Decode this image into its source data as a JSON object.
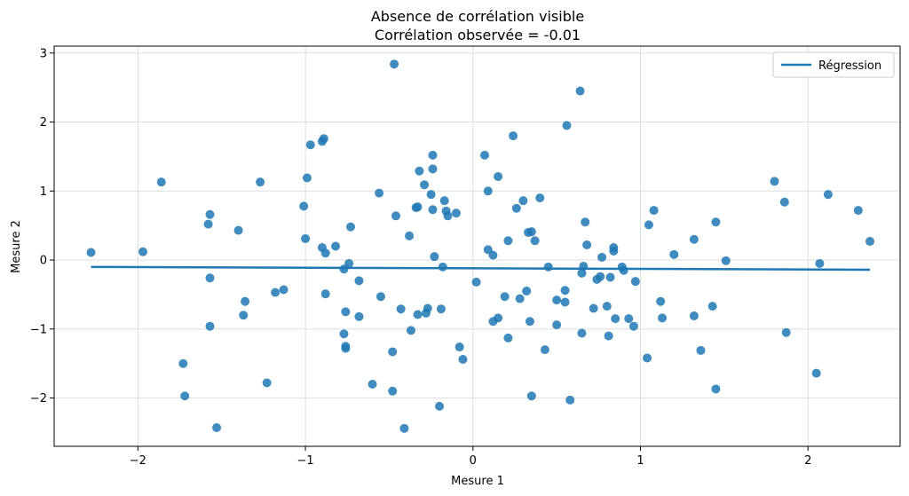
{
  "chart_data": {
    "type": "scatter",
    "title_line1": "Absence de corrélation visible",
    "title_line2": "Corrélation observée = -0.01",
    "xlabel": "Mesure 1",
    "ylabel": "Mesure 2",
    "xlim": [
      -2.5,
      2.55
    ],
    "ylim": [
      -2.7,
      3.1
    ],
    "xticks": [
      -2,
      -1,
      0,
      1,
      2
    ],
    "xtick_labels": [
      "−2",
      "−1",
      "0",
      "1",
      "2"
    ],
    "yticks": [
      -2,
      -1,
      0,
      1,
      2,
      3
    ],
    "ytick_labels": [
      "−2",
      "−1",
      "0",
      "1",
      "2",
      "3"
    ],
    "grid": true,
    "legend": {
      "position": "top-right",
      "entries": [
        "Régression"
      ]
    },
    "colors": {
      "points": "#1f77b4",
      "line": "#1f77b4"
    },
    "regression": {
      "x": [
        -2.28,
        2.37
      ],
      "y": [
        -0.1,
        -0.14
      ]
    },
    "points": [
      [
        -2.28,
        0.11
      ],
      [
        -1.97,
        0.12
      ],
      [
        -1.86,
        1.13
      ],
      [
        -1.73,
        -1.5
      ],
      [
        -1.72,
        -1.97
      ],
      [
        -1.58,
        0.52
      ],
      [
        -1.57,
        0.66
      ],
      [
        -1.57,
        -0.26
      ],
      [
        -1.57,
        -0.96
      ],
      [
        -1.53,
        -2.43
      ],
      [
        -1.4,
        0.43
      ],
      [
        -1.37,
        -0.8
      ],
      [
        -1.36,
        -0.6
      ],
      [
        -1.27,
        1.13
      ],
      [
        -1.23,
        -1.78
      ],
      [
        -1.18,
        -0.47
      ],
      [
        -1.13,
        -0.43
      ],
      [
        -1.01,
        0.78
      ],
      [
        -1.0,
        0.31
      ],
      [
        -0.99,
        1.19
      ],
      [
        -0.97,
        1.67
      ],
      [
        -0.9,
        1.72
      ],
      [
        -0.89,
        1.76
      ],
      [
        -0.9,
        0.18
      ],
      [
        -0.88,
        0.1
      ],
      [
        -0.88,
        -0.49
      ],
      [
        -0.82,
        0.2
      ],
      [
        -0.77,
        -0.13
      ],
      [
        -0.76,
        -0.75
      ],
      [
        -0.77,
        -1.07
      ],
      [
        -0.76,
        -1.25
      ],
      [
        -0.76,
        -1.28
      ],
      [
        -0.74,
        -0.05
      ],
      [
        -0.73,
        0.48
      ],
      [
        -0.68,
        -0.3
      ],
      [
        -0.68,
        -0.82
      ],
      [
        -0.6,
        -1.8
      ],
      [
        -0.56,
        0.97
      ],
      [
        -0.55,
        -0.53
      ],
      [
        -0.48,
        -1.33
      ],
      [
        -0.48,
        -1.9
      ],
      [
        -0.47,
        2.84
      ],
      [
        -0.46,
        0.64
      ],
      [
        -0.43,
        -0.71
      ],
      [
        -0.41,
        -2.44
      ],
      [
        -0.38,
        0.35
      ],
      [
        -0.37,
        -1.02
      ],
      [
        -0.34,
        0.76
      ],
      [
        -0.33,
        0.77
      ],
      [
        -0.32,
        1.29
      ],
      [
        -0.33,
        -0.79
      ],
      [
        -0.29,
        1.09
      ],
      [
        -0.28,
        -0.77
      ],
      [
        -0.27,
        -0.7
      ],
      [
        -0.25,
        0.95
      ],
      [
        -0.24,
        1.52
      ],
      [
        -0.24,
        1.32
      ],
      [
        -0.24,
        0.73
      ],
      [
        -0.23,
        0.05
      ],
      [
        -0.2,
        -2.12
      ],
      [
        -0.19,
        -0.71
      ],
      [
        -0.18,
        -0.1
      ],
      [
        -0.17,
        0.86
      ],
      [
        -0.16,
        0.71
      ],
      [
        -0.15,
        0.64
      ],
      [
        -0.1,
        0.68
      ],
      [
        -0.08,
        -1.26
      ],
      [
        -0.06,
        -1.44
      ],
      [
        0.02,
        -0.32
      ],
      [
        0.07,
        1.52
      ],
      [
        0.09,
        1.0
      ],
      [
        0.09,
        0.15
      ],
      [
        0.12,
        0.07
      ],
      [
        0.12,
        -0.89
      ],
      [
        0.15,
        1.21
      ],
      [
        0.15,
        -0.84
      ],
      [
        0.19,
        -0.53
      ],
      [
        0.21,
        0.28
      ],
      [
        0.21,
        -1.13
      ],
      [
        0.24,
        1.8
      ],
      [
        0.26,
        0.75
      ],
      [
        0.28,
        -0.56
      ],
      [
        0.3,
        0.86
      ],
      [
        0.32,
        -0.45
      ],
      [
        0.33,
        0.4
      ],
      [
        0.34,
        -0.89
      ],
      [
        0.35,
        0.41
      ],
      [
        0.35,
        -1.97
      ],
      [
        0.37,
        0.28
      ],
      [
        0.4,
        0.9
      ],
      [
        0.43,
        -1.3
      ],
      [
        0.45,
        -0.1
      ],
      [
        0.5,
        -0.58
      ],
      [
        0.5,
        -0.94
      ],
      [
        0.55,
        -0.61
      ],
      [
        0.55,
        -0.44
      ],
      [
        0.56,
        1.95
      ],
      [
        0.58,
        -2.03
      ],
      [
        0.64,
        2.45
      ],
      [
        0.65,
        -0.19
      ],
      [
        0.65,
        -1.06
      ],
      [
        0.66,
        -0.09
      ],
      [
        0.67,
        0.55
      ],
      [
        0.68,
        0.22
      ],
      [
        0.72,
        -0.7
      ],
      [
        0.74,
        -0.28
      ],
      [
        0.76,
        -0.24
      ],
      [
        0.77,
        0.04
      ],
      [
        0.8,
        -0.67
      ],
      [
        0.81,
        -1.1
      ],
      [
        0.82,
        -0.25
      ],
      [
        0.84,
        0.13
      ],
      [
        0.84,
        0.18
      ],
      [
        0.85,
        -0.85
      ],
      [
        0.89,
        -0.1
      ],
      [
        0.9,
        -0.15
      ],
      [
        0.93,
        -0.85
      ],
      [
        0.96,
        -0.96
      ],
      [
        0.97,
        -0.31
      ],
      [
        1.04,
        -1.42
      ],
      [
        1.05,
        0.51
      ],
      [
        1.08,
        0.72
      ],
      [
        1.12,
        -0.6
      ],
      [
        1.13,
        -0.84
      ],
      [
        1.2,
        0.08
      ],
      [
        1.32,
        0.3
      ],
      [
        1.32,
        -0.81
      ],
      [
        1.36,
        -1.31
      ],
      [
        1.43,
        -0.67
      ],
      [
        1.45,
        0.55
      ],
      [
        1.45,
        -1.87
      ],
      [
        1.51,
        -0.01
      ],
      [
        1.8,
        1.14
      ],
      [
        1.86,
        0.84
      ],
      [
        1.87,
        -1.05
      ],
      [
        2.05,
        -1.64
      ],
      [
        2.07,
        -0.05
      ],
      [
        2.12,
        0.95
      ],
      [
        2.3,
        0.72
      ],
      [
        2.37,
        0.27
      ]
    ]
  }
}
